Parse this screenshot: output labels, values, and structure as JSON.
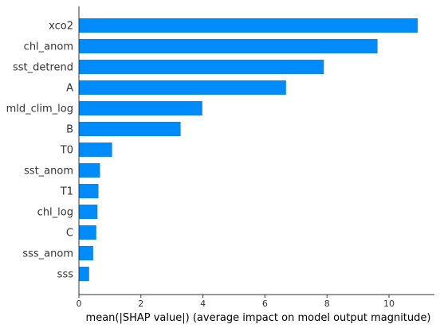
{
  "chart_data": {
    "type": "bar",
    "orientation": "horizontal",
    "categories": [
      "xco2",
      "chl_anom",
      "sst_detrend",
      "A",
      "mld_clim_log",
      "B",
      "T0",
      "sst_anom",
      "T1",
      "chl_log",
      "C",
      "sss_anom",
      "sss"
    ],
    "values": [
      10.93,
      9.63,
      7.9,
      6.68,
      3.98,
      3.28,
      1.07,
      0.68,
      0.63,
      0.6,
      0.56,
      0.46,
      0.33
    ],
    "xlabel": "mean(|SHAP value|) (average impact on model output magnitude)",
    "ylabel": "",
    "xlim": [
      0,
      11.5
    ],
    "xticks": [
      "0",
      "2",
      "4",
      "6",
      "8",
      "10"
    ],
    "bar_color": "#008bfb",
    "axis_color": "#333333",
    "grid": false
  }
}
